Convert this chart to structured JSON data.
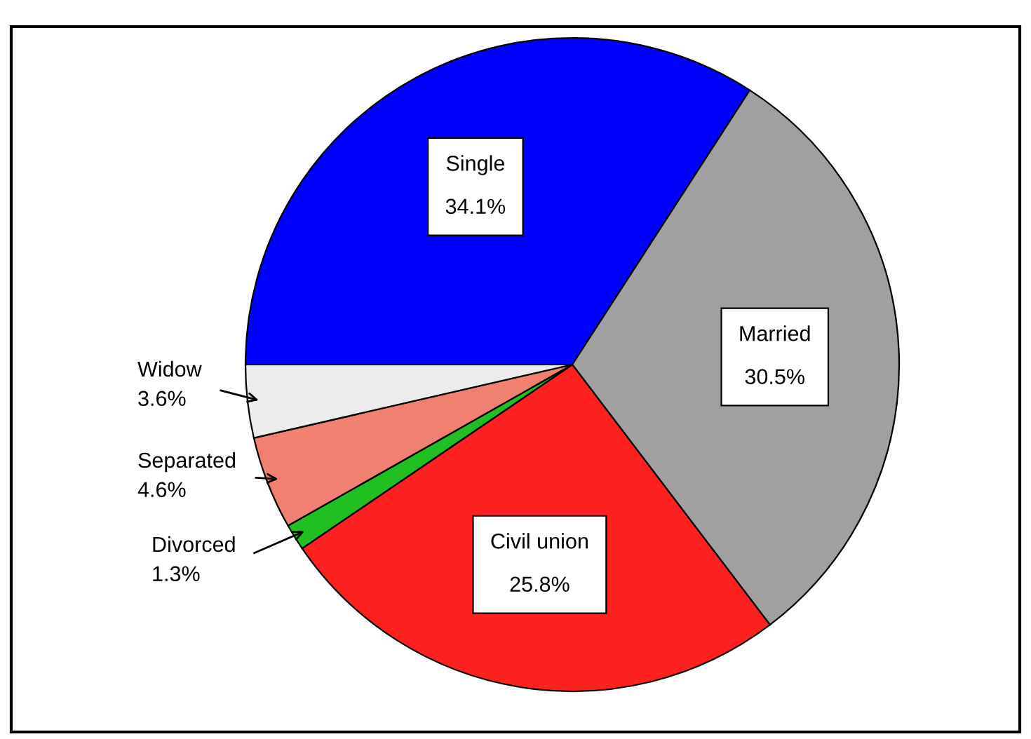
{
  "chart_data": {
    "type": "pie",
    "categories": [
      "Single",
      "Married",
      "Civil union",
      "Divorced",
      "Separated",
      "Widow"
    ],
    "values": [
      34.1,
      30.5,
      25.8,
      1.3,
      4.6,
      3.6
    ],
    "value_labels": [
      "34.1%",
      "30.5%",
      "25.8%",
      "1.3%",
      "4.6%",
      "3.6%"
    ],
    "colors": [
      "#0000ff",
      "#a0a0a0",
      "#ff2020",
      "#20c020",
      "#f08070",
      "#ececec"
    ],
    "legend": false
  }
}
